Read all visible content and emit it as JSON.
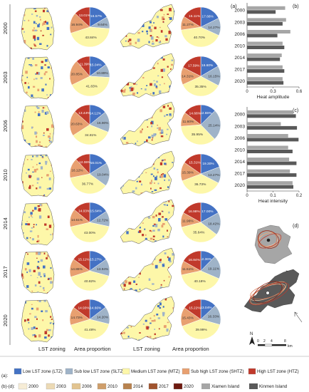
{
  "figure": {
    "panel_letters": [
      "(a)",
      "(b)",
      "(c)",
      "(d)"
    ],
    "column_headers": {
      "lst_zoning": "LST zoning",
      "area_proportion": "Area proportion"
    },
    "legend": {
      "a_prefix": "(a):",
      "bd_prefix": "(b)-(d):",
      "zones": [
        {
          "label": "Low LST zone (LTZ)",
          "color": "#4472c4"
        },
        {
          "label": "Sub low LST zone (SLTZ)",
          "color": "#9fb3c8"
        },
        {
          "label": "Medium LST zone (MTZ)",
          "color": "#fdf7a9"
        },
        {
          "label": "Sub high LST zone (SHTZ)",
          "color": "#e8a070"
        },
        {
          "label": "High LST zone (HTZ)",
          "color": "#c0392b"
        }
      ],
      "years": [
        {
          "label": "2000",
          "color": "#f6ecd6"
        },
        {
          "label": "2003",
          "color": "#ecdab5"
        },
        {
          "label": "2006",
          "color": "#e2c490"
        },
        {
          "label": "2010",
          "color": "#cf9e6a"
        },
        {
          "label": "2014",
          "color": "#b8824e"
        },
        {
          "label": "2017",
          "color": "#a0532e"
        },
        {
          "label": "2020",
          "color": "#6e1a10"
        }
      ],
      "islands": [
        {
          "label": "Xiamen Island",
          "color": "#a6a6a6"
        },
        {
          "label": "Kinmen Island",
          "color": "#595959"
        }
      ]
    },
    "map_scale": {
      "north": "N",
      "ticks": [
        "0",
        "2",
        "4",
        "8"
      ],
      "unit": "km"
    }
  },
  "chart_data": [
    {
      "type": "pie",
      "panel": "(a)",
      "island": "Xiamen Island",
      "slice_order": [
        "LTZ",
        "SLTZ",
        "MTZ",
        "SHTZ",
        "HTZ"
      ],
      "rows": [
        {
          "year": "2000",
          "values": [
            16.57,
            9.64,
            43.84,
            16.94,
            13.01
          ],
          "labels": [
            "16.57%",
            "9.64%",
            "43.84%",
            "16.94%",
            "13.01%"
          ]
        },
        {
          "year": "2003",
          "values": [
            15.04,
            10.89,
            41.83,
            20.85,
            11.39
          ],
          "labels": [
            "15.04%",
            "10.89%",
            "41.83%",
            "20.85%",
            "11.39%"
          ]
        },
        {
          "year": "2006",
          "values": [
            14.12,
            16.9,
            34.81,
            20.63,
            13.44
          ],
          "labels": [
            "14.12%",
            "16.90%",
            "34.81%",
            "20.63%",
            "13.44%"
          ]
        },
        {
          "year": "2010",
          "values": [
            16.01,
            19.04,
            36.77,
            16.12,
            12.06
          ],
          "labels": [
            "16.01%",
            "19.04%",
            "36.77%",
            "16.12%",
            "12.06%"
          ]
        },
        {
          "year": "2014",
          "values": [
            15.64,
            12.72,
            43.0,
            14.61,
            14.03
          ],
          "labels": [
            "15.64%",
            "12.72%",
            "43.00%",
            "14.61%",
            "14.03%"
          ]
        },
        {
          "year": "2017",
          "values": [
            15.27,
            13.94,
            40.82,
            14.86,
            15.11
          ],
          "labels": [
            "15.27%",
            "13.94%",
            "40.82%",
            "14.86%",
            "15.11%"
          ]
        },
        {
          "year": "2020",
          "values": [
            14.66,
            14.2,
            41.48,
            14.73,
            14.93
          ],
          "labels": [
            "14.66%",
            "14.20%",
            "41.48%",
            "14.73%",
            "14.93%"
          ]
        }
      ]
    },
    {
      "type": "pie",
      "panel": "(a)",
      "island": "Kinmen Island",
      "slice_order": [
        "LTZ",
        "SLTZ",
        "MTZ",
        "SHTZ",
        "HTZ"
      ],
      "rows": [
        {
          "year": "2000",
          "values": [
            17.66,
            14.27,
            40.7,
            11.27,
            16.11
          ],
          "labels": [
            "17.66%",
            "14.27%",
            "40.70%",
            "11.27%",
            "16.11%"
          ]
        },
        {
          "year": "2003",
          "values": [
            16.6,
            16.15,
            35.35,
            14.31,
            17.59
          ],
          "labels": [
            "16.60%",
            "16.15%",
            "35.35%",
            "14.31%",
            "17.59%"
          ]
        },
        {
          "year": "2006",
          "values": [
            12.65,
            25.14,
            35.95,
            11.6,
            14.66
          ],
          "labels": [
            "12.65%",
            "25.14%",
            "35.95%",
            "11.60%",
            "14.66%"
          ]
        },
        {
          "year": "2010",
          "values": [
            19.3,
            13.27,
            36.73,
            15.39,
            15.31
          ],
          "labels": [
            "19.30%",
            "13.27%",
            "36.73%",
            "15.39%",
            "15.31%"
          ]
        },
        {
          "year": "2014",
          "values": [
            17.0,
            18.42,
            35.64,
            11.96,
            16.98
          ],
          "labels": [
            "17.00%",
            "18.42%",
            "35.64%",
            "11.96%",
            "16.98%"
          ]
        },
        {
          "year": "2017",
          "values": [
            12.36,
            19.11,
            40.18,
            11.51,
            16.84
          ],
          "labels": [
            "12.36%",
            "19.11%",
            "40.18%",
            "11.51%",
            "16.84%"
          ]
        },
        {
          "year": "2020",
          "values": [
            13.04,
            16.33,
            39.99,
            15.43,
            15.22
          ],
          "labels": [
            "13.04%",
            "16.33%",
            "39.99%",
            "15.43%",
            "15.22%"
          ]
        }
      ]
    },
    {
      "type": "bar",
      "orientation": "horizontal",
      "panel": "(b)",
      "xlabel": "Heat amplitude",
      "xlim": [
        0,
        0.6
      ],
      "xticks": [
        "0",
        "0.3",
        "0.6"
      ],
      "categories": [
        "2000",
        "2003",
        "2006",
        "2010",
        "2014",
        "2017",
        "2020"
      ],
      "series": [
        {
          "name": "Xiamen Island",
          "color": "#a6a6a6",
          "values": [
            0.44,
            0.45,
            0.5,
            0.41,
            0.4,
            0.41,
            0.41
          ]
        },
        {
          "name": "Kinmen Island",
          "color": "#595959",
          "values": [
            0.33,
            0.41,
            0.35,
            0.43,
            0.38,
            0.43,
            0.42
          ]
        }
      ]
    },
    {
      "type": "bar",
      "orientation": "horizontal",
      "panel": "(c)",
      "xlabel": "Heat intensity",
      "xlim": [
        0,
        0.2
      ],
      "xticks": [
        "0",
        "0.1",
        "0.2"
      ],
      "categories": [
        "2000",
        "2003",
        "2006",
        "2010",
        "2014",
        "2017",
        "2020"
      ],
      "series": [
        {
          "name": "Xiamen Island",
          "color": "#a6a6a6",
          "values": [
            0.178,
            0.13,
            0.158,
            0.158,
            0.162,
            0.165,
            0.175
          ]
        },
        {
          "name": "Kinmen Island",
          "color": "#595959",
          "values": [
            0.188,
            0.192,
            0.198,
            0.175,
            0.19,
            0.19,
            0.178
          ]
        }
      ]
    }
  ]
}
